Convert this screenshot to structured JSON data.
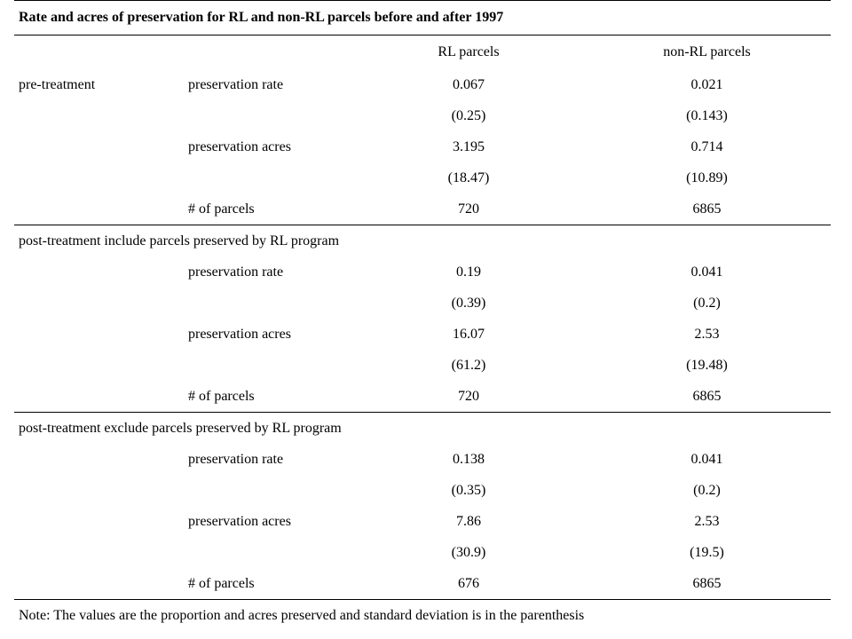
{
  "title": "Rate and acres of preservation for RL and non-RL parcels before and after 1997",
  "columns": {
    "rl": "RL parcels",
    "nonrl": "non-RL parcels"
  },
  "sections": [
    {
      "label": "pre-treatment",
      "rows": [
        {
          "label": "preservation rate",
          "rl": "0.067",
          "nonrl": "0.021"
        },
        {
          "label": "",
          "rl": "(0.25)",
          "nonrl": "(0.143)"
        },
        {
          "label": "preservation acres",
          "rl": "3.195",
          "nonrl": "0.714"
        },
        {
          "label": "",
          "rl": "(18.47)",
          "nonrl": "(10.89)"
        },
        {
          "label": "# of parcels",
          "rl": "720",
          "nonrl": "6865"
        }
      ]
    },
    {
      "label": "post-treatment include parcels preserved by RL program",
      "rows": [
        {
          "label": "preservation rate",
          "rl": "0.19",
          "nonrl": "0.041"
        },
        {
          "label": "",
          "rl": "(0.39)",
          "nonrl": "(0.2)"
        },
        {
          "label": "preservation acres",
          "rl": "16.07",
          "nonrl": "2.53"
        },
        {
          "label": "",
          "rl": "(61.2)",
          "nonrl": "(19.48)"
        },
        {
          "label": "# of parcels",
          "rl": "720",
          "nonrl": "6865"
        }
      ]
    },
    {
      "label": "post-treatment exclude parcels preserved by RL program",
      "rows": [
        {
          "label": "preservation rate",
          "rl": "0.138",
          "nonrl": "0.041"
        },
        {
          "label": "",
          "rl": "(0.35)",
          "nonrl": "(0.2)"
        },
        {
          "label": "preservation acres",
          "rl": "7.86",
          "nonrl": "2.53"
        },
        {
          "label": "",
          "rl": "(30.9)",
          "nonrl": "(19.5)"
        },
        {
          "label": "# of parcels",
          "rl": "676",
          "nonrl": "6865"
        }
      ]
    }
  ],
  "note": "Note: The values are the proportion and acres preserved and standard deviation is in the parenthesis"
}
